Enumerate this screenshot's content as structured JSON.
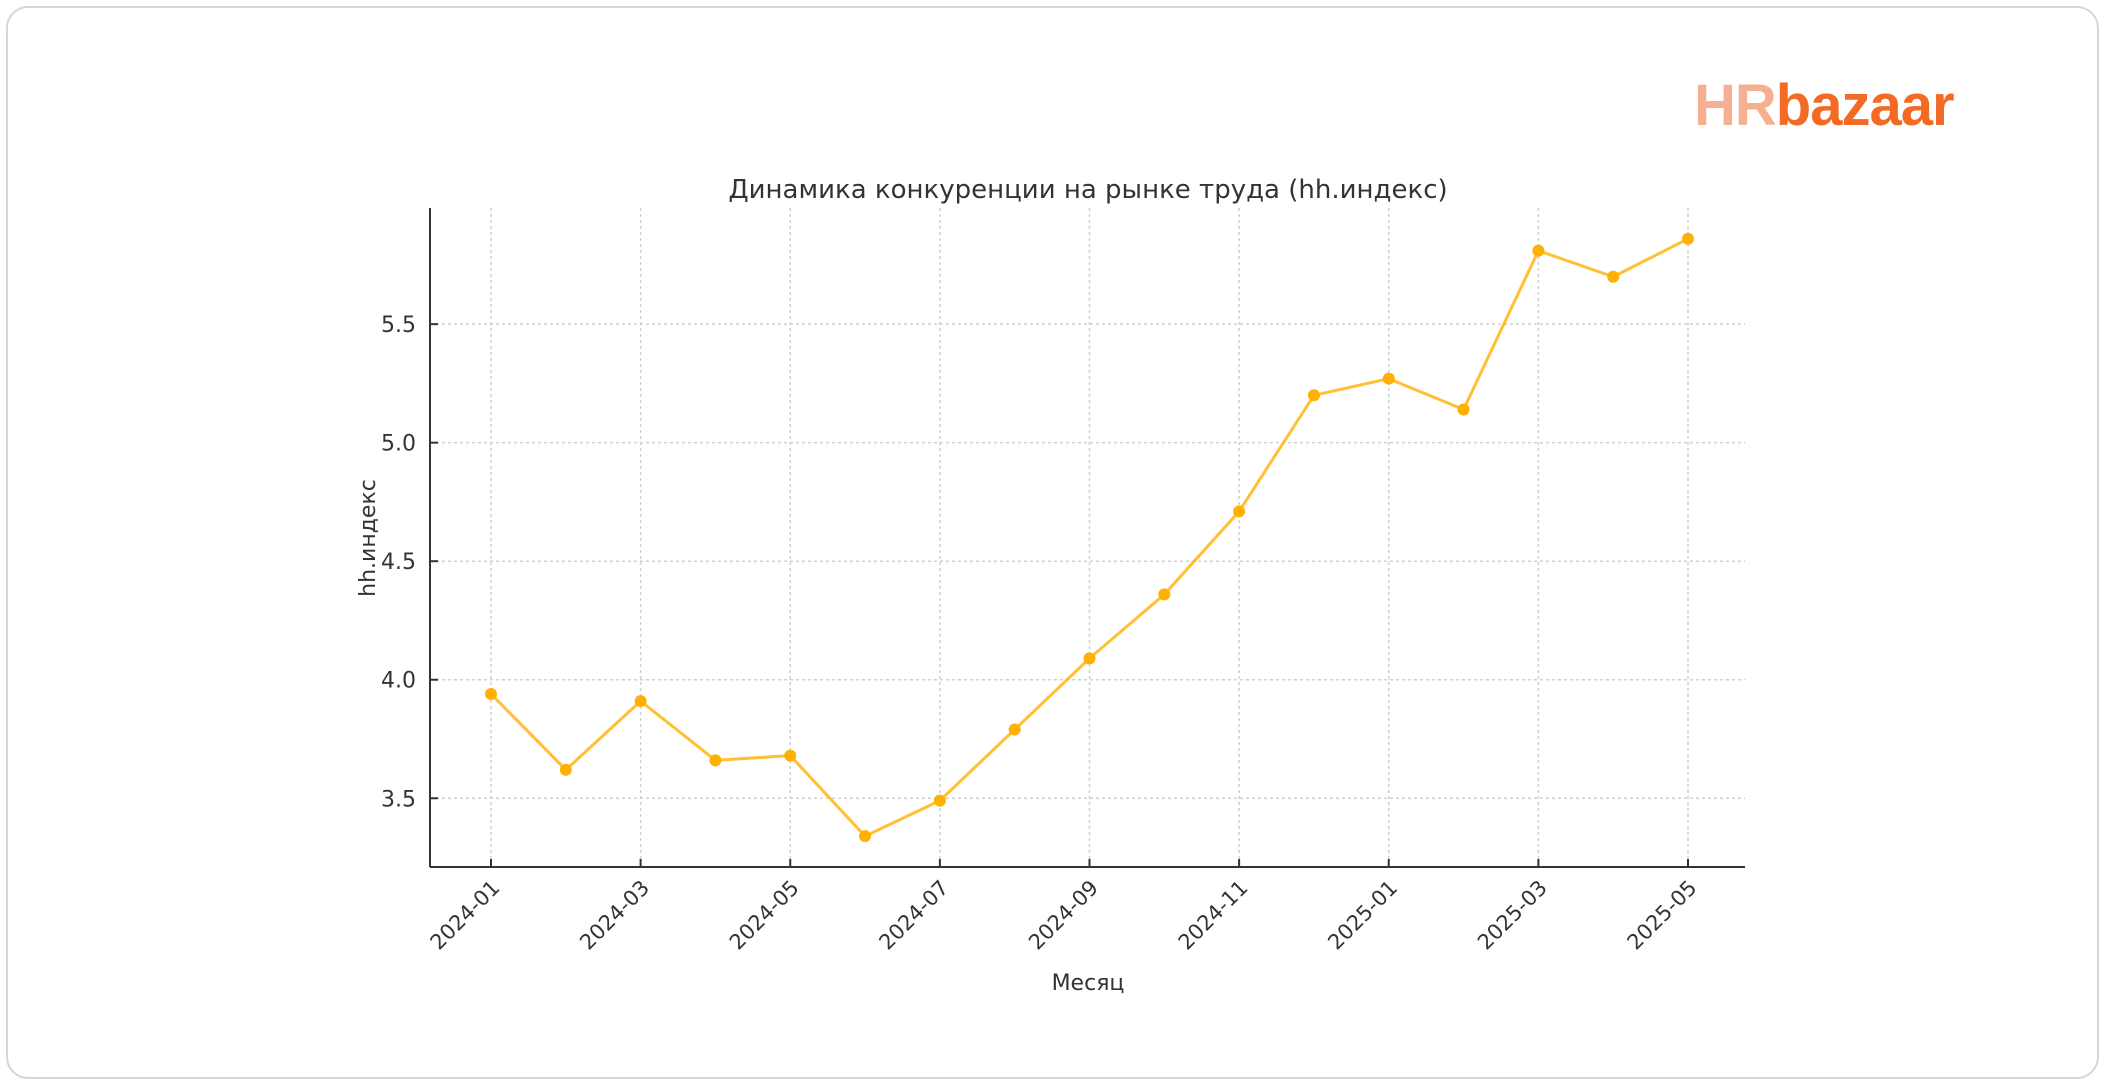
{
  "brand": {
    "logo_text_part1": "HR",
    "logo_text_part2": "bazaar",
    "colors": {
      "hr": "#f6b091",
      "bazaar": "#f26a24"
    }
  },
  "chart_data": {
    "type": "line",
    "title": "Динамика конкуренции на рынке труда (hh.индекс)",
    "xlabel": "Месяц",
    "ylabel": "hh.индекс",
    "x": [
      "2024-01",
      "2024-02",
      "2024-03",
      "2024-04",
      "2024-05",
      "2024-06",
      "2024-07",
      "2024-08",
      "2024-09",
      "2024-10",
      "2024-11",
      "2024-12",
      "2025-01",
      "2025-02",
      "2025-03",
      "2025-04",
      "2025-05"
    ],
    "values": [
      3.94,
      3.62,
      3.91,
      3.66,
      3.68,
      3.34,
      3.49,
      3.79,
      4.09,
      4.36,
      4.71,
      5.2,
      5.27,
      5.14,
      5.81,
      5.7,
      5.86
    ],
    "x_tick_labels": [
      "2024-01",
      "2024-03",
      "2024-05",
      "2024-07",
      "2024-09",
      "2024-11",
      "2025-01",
      "2025-03",
      "2025-05"
    ],
    "y_ticks": [
      3.5,
      4.0,
      4.5,
      5.0,
      5.5
    ],
    "y_tick_labels": [
      "3.5",
      "4.0",
      "4.5",
      "5.0",
      "5.5"
    ],
    "ylim": [
      3.21,
      5.99
    ],
    "grid": true,
    "marker": "circle",
    "line_color": "#ffb000"
  }
}
